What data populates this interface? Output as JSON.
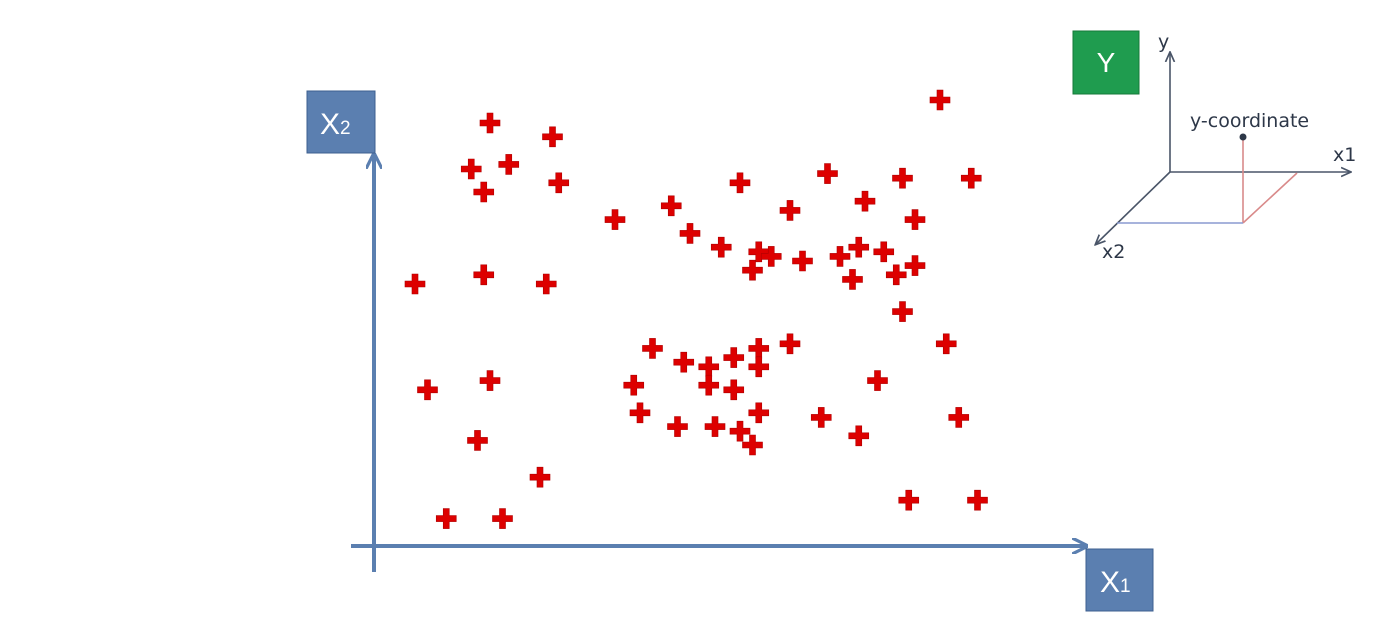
{
  "axes": {
    "x_label": "X",
    "x_subscript": "1",
    "y_label": "X",
    "y_subscript": "2",
    "axis_color": "#5b7fb0",
    "box_color": "#5b7fb0"
  },
  "target": {
    "label": "Y",
    "color": "#1f9c4f"
  },
  "mini_diagram": {
    "y_axis_label": "y",
    "x1_axis_label": "x1",
    "x2_axis_label": "x2",
    "point_label": "y-coordinate"
  },
  "chart_data": {
    "type": "scatter",
    "marker": "plus",
    "marker_color": "#dd0000",
    "xlim": [
      0,
      100
    ],
    "ylim": [
      0,
      100
    ],
    "points": [
      [
        20,
        95
      ],
      [
        30,
        92
      ],
      [
        17,
        85
      ],
      [
        23,
        86
      ],
      [
        31,
        82
      ],
      [
        19,
        80
      ],
      [
        40,
        74
      ],
      [
        49,
        77
      ],
      [
        60,
        82
      ],
      [
        74,
        84
      ],
      [
        86,
        83
      ],
      [
        97,
        83
      ],
      [
        92,
        100
      ],
      [
        68,
        76
      ],
      [
        80,
        78
      ],
      [
        88,
        74
      ],
      [
        52,
        71
      ],
      [
        57,
        68
      ],
      [
        63,
        67
      ],
      [
        65,
        66
      ],
      [
        70,
        65
      ],
      [
        76,
        66
      ],
      [
        79,
        68
      ],
      [
        83,
        67
      ],
      [
        85,
        62
      ],
      [
        88,
        64
      ],
      [
        62,
        63
      ],
      [
        78,
        61
      ],
      [
        8,
        60
      ],
      [
        19,
        62
      ],
      [
        29,
        60
      ],
      [
        86,
        54
      ],
      [
        93,
        47
      ],
      [
        46,
        46
      ],
      [
        51,
        43
      ],
      [
        55,
        42
      ],
      [
        59,
        44
      ],
      [
        63,
        46
      ],
      [
        63,
        42
      ],
      [
        68,
        47
      ],
      [
        10,
        37
      ],
      [
        20,
        39
      ],
      [
        43,
        38
      ],
      [
        55,
        38
      ],
      [
        59,
        37
      ],
      [
        44,
        32
      ],
      [
        63,
        32
      ],
      [
        50,
        29
      ],
      [
        56,
        29
      ],
      [
        60,
        28
      ],
      [
        73,
        31
      ],
      [
        82,
        39
      ],
      [
        95,
        31
      ],
      [
        18,
        26
      ],
      [
        62,
        25
      ],
      [
        79,
        27
      ],
      [
        28,
        18
      ],
      [
        13,
        9
      ],
      [
        22,
        9
      ],
      [
        87,
        13
      ],
      [
        98,
        13
      ]
    ]
  }
}
